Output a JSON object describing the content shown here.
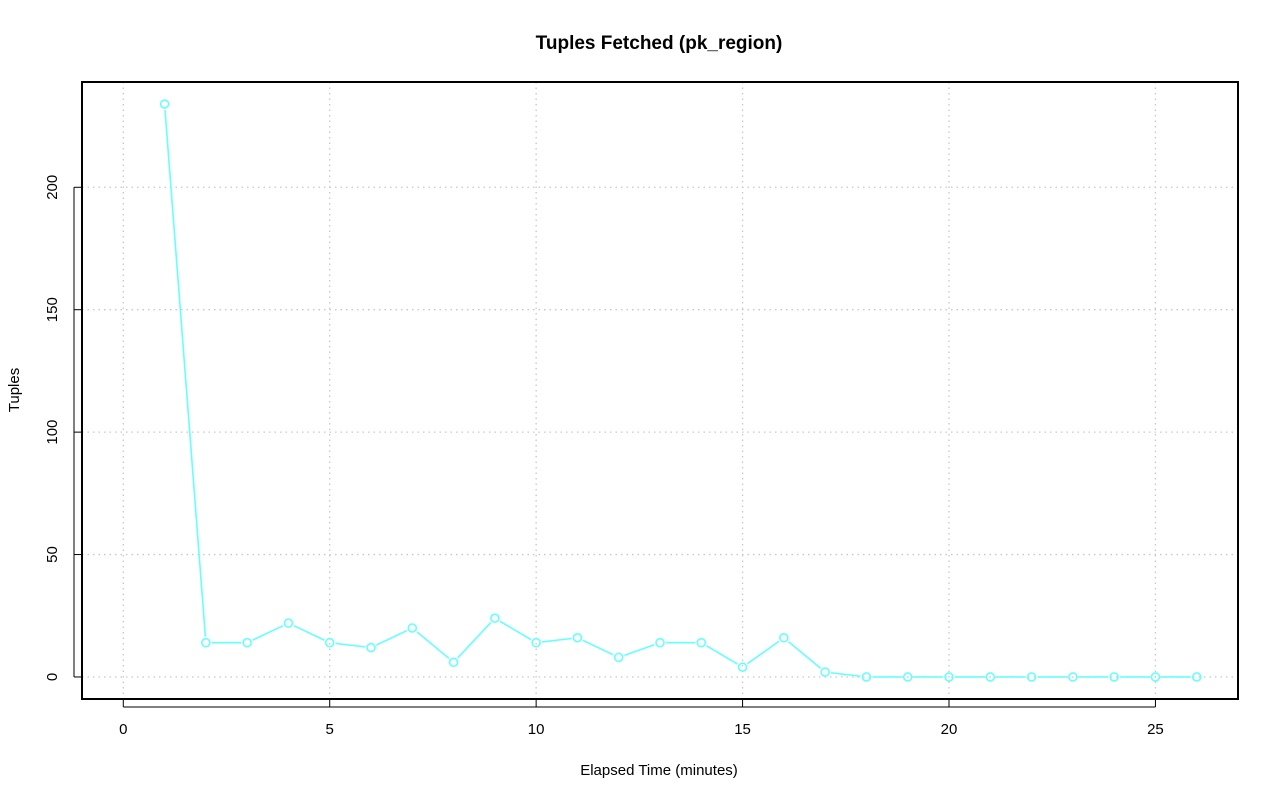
{
  "chart_data": {
    "type": "line",
    "title": "Tuples Fetched (pk_region)",
    "xlabel": "Elapsed Time (minutes)",
    "ylabel": "Tuples",
    "xlim": [
      -1,
      27
    ],
    "ylim": [
      -9,
      243
    ],
    "xticks": [
      0,
      5,
      10,
      15,
      20,
      25
    ],
    "yticks": [
      0,
      50,
      100,
      150,
      200
    ],
    "grid": true,
    "series": [
      {
        "color": "#66ffff",
        "marker": "open-circle",
        "x": [
          1,
          2,
          3,
          4,
          5,
          6,
          7,
          8,
          9,
          10,
          11,
          12,
          13,
          14,
          15,
          16,
          17,
          18,
          19,
          20,
          21,
          22,
          23,
          24,
          25,
          26
        ],
        "y": [
          234,
          14,
          14,
          22,
          14,
          12,
          20,
          6,
          24,
          14,
          16,
          8,
          14,
          14,
          4,
          16,
          2,
          0,
          0,
          0,
          0,
          0,
          0,
          0,
          0,
          0
        ]
      }
    ]
  }
}
